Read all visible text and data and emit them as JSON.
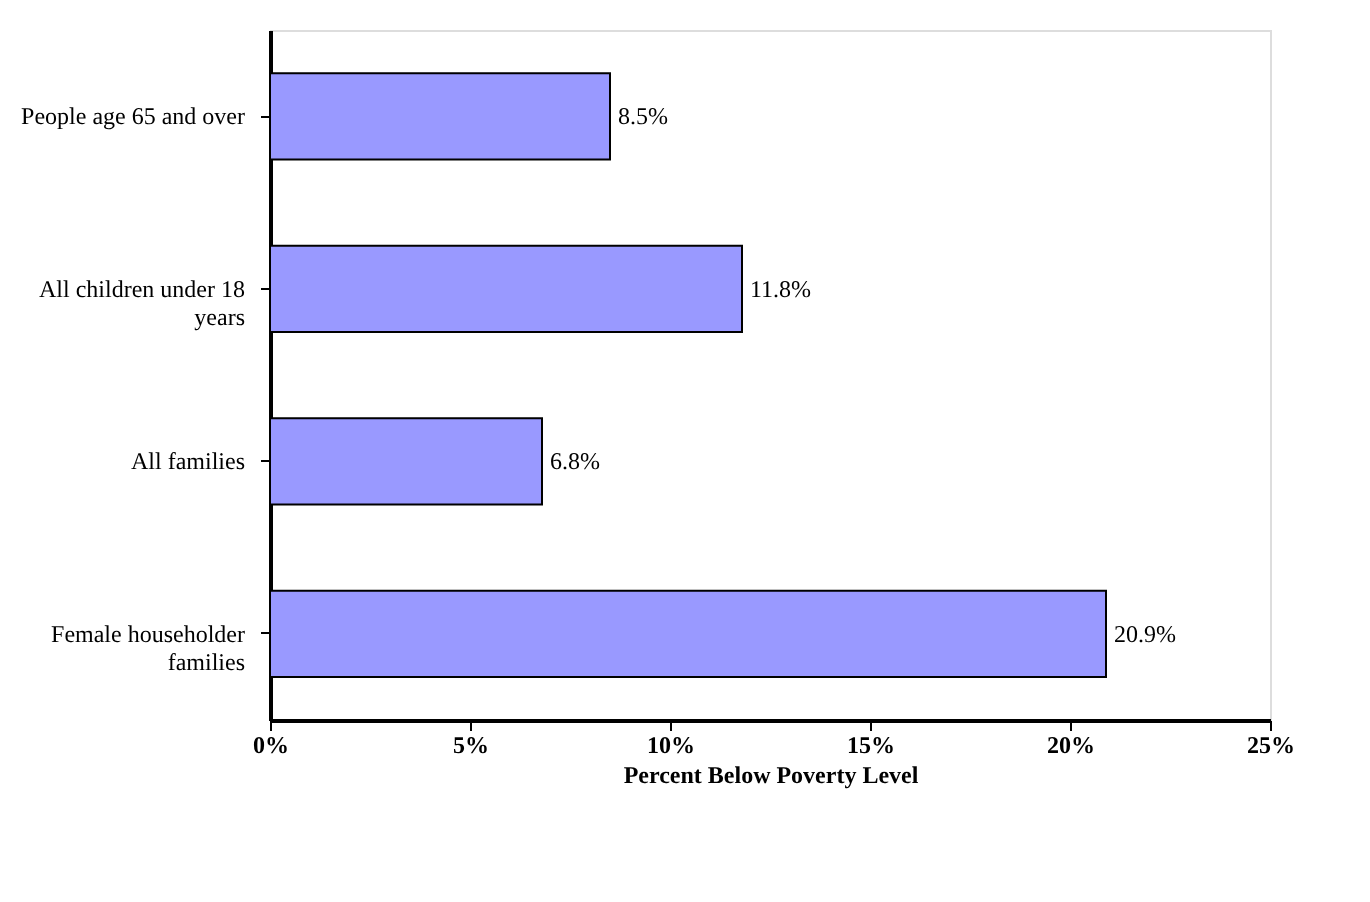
{
  "chart_data": {
    "type": "bar",
    "orientation": "horizontal",
    "xlabel": "Percent Below Poverty Level",
    "categories": [
      "People age 65 and over",
      "All children under 18 years",
      "All families",
      "Female householder families"
    ],
    "values": [
      8.5,
      11.8,
      6.8,
      20.9
    ],
    "value_labels": [
      "8.5%",
      "11.8%",
      "6.8%",
      "20.9%"
    ],
    "color": "#9999ff",
    "xlim": [
      0,
      25
    ],
    "xticks": [
      {
        "value": 0,
        "label": "0%"
      },
      {
        "value": 5,
        "label": "5%"
      },
      {
        "value": 10,
        "label": "10%"
      },
      {
        "value": 15,
        "label": "15%"
      },
      {
        "value": 20,
        "label": "20%"
      },
      {
        "value": 25,
        "label": "25%"
      }
    ],
    "grid": false
  }
}
